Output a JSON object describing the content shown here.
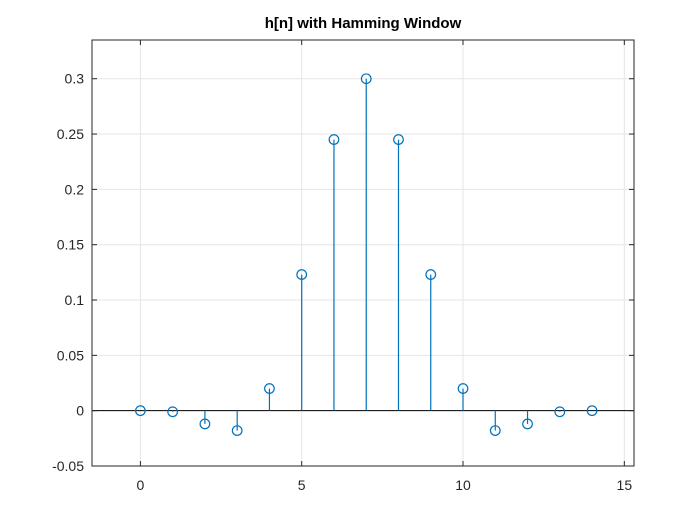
{
  "chart_data": {
    "type": "stem",
    "title": "h[n] with Hamming Window",
    "xlabel": "",
    "ylabel": "",
    "xlim": [
      -1.5,
      15.3
    ],
    "ylim": [
      -0.05,
      0.335
    ],
    "xticks": [
      0,
      5,
      10,
      15
    ],
    "xtick_labels": [
      "0",
      "5",
      "10",
      "15"
    ],
    "yticks": [
      -0.05,
      0,
      0.05,
      0.1,
      0.15,
      0.2,
      0.25,
      0.3
    ],
    "ytick_labels": [
      "-0.05",
      "0",
      "0.05",
      "0.1",
      "0.15",
      "0.2",
      "0.25",
      "0.3"
    ],
    "grid": true,
    "color": "#0072BD",
    "x": [
      0,
      1,
      2,
      3,
      4,
      5,
      6,
      7,
      8,
      9,
      10,
      11,
      12,
      13,
      14
    ],
    "values": [
      0.0,
      -0.001,
      -0.012,
      -0.018,
      0.02,
      0.123,
      0.245,
      0.3,
      0.245,
      0.123,
      0.02,
      -0.018,
      -0.012,
      -0.001,
      0.0
    ]
  }
}
